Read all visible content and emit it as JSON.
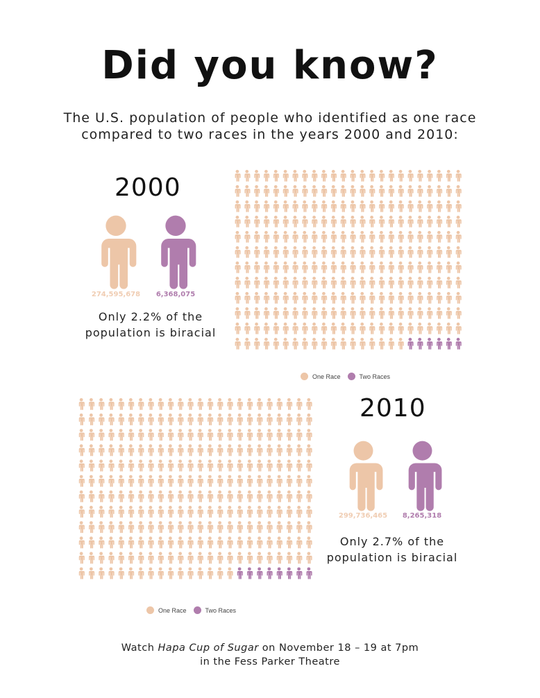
{
  "title": "Did you know?",
  "subtitle": [
    "The U.S. population of people who identified as one race",
    "compared to two races in the years 2000 and 2010:"
  ],
  "colors": {
    "one_race": "#edc6a8",
    "two_races": "#b07dad"
  },
  "chart_data": [
    {
      "type": "pictogram",
      "title": "2000",
      "grid": {
        "columns": 24,
        "rows": 12
      },
      "series": [
        {
          "name": "One Race",
          "value": 274595678,
          "icons": 282
        },
        {
          "name": "Two Races",
          "value": 6368075,
          "icons": 6
        }
      ],
      "values_display": [
        "274,595,678",
        "6,368,075"
      ],
      "annotation": [
        "Only 2.2% of the",
        "population is biracial"
      ],
      "legend": [
        "One Race",
        "Two Races"
      ],
      "legend_position": "bottom"
    },
    {
      "type": "pictogram",
      "title": "2010",
      "grid": {
        "columns": 24,
        "rows": 12
      },
      "series": [
        {
          "name": "One Race",
          "value": 299736465,
          "icons": 280
        },
        {
          "name": "Two Races",
          "value": 8265318,
          "icons": 8
        }
      ],
      "values_display": [
        "299,736,465",
        "8,265,318"
      ],
      "annotation": [
        "Only 2.7% of the",
        "population is biracial"
      ],
      "legend": [
        "One Race",
        "Two Races"
      ],
      "legend_position": "bottom"
    }
  ],
  "footer": {
    "line1_pre": "Watch ",
    "line1_em": "Hapa Cup of Sugar",
    "line1_post": " on November 18 – 19 at 7pm",
    "line2": "in the Fess Parker Theatre"
  }
}
